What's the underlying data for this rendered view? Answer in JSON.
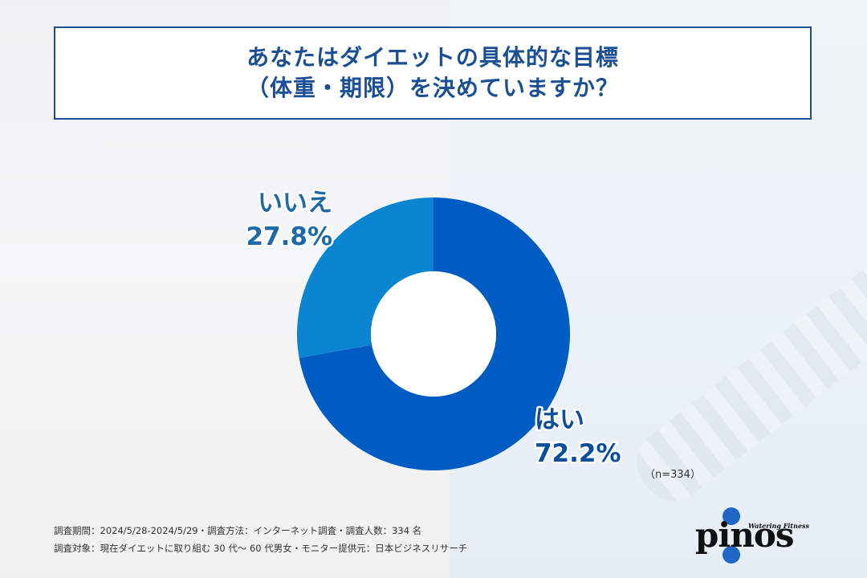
{
  "title": {
    "line1": "あなたはダイエットの具体的な目標",
    "line2": "（体重・期限）を決めていますか？"
  },
  "chart_data": {
    "type": "pie",
    "donut": true,
    "title": "あなたはダイエットの具体的な目標（体重・期限）を決めていますか？",
    "slices": [
      {
        "label": "はい",
        "value": 72.2,
        "value_label": "72.2%",
        "color": "#005bc3",
        "label_color": "#0a4f9c"
      },
      {
        "label": "いいえ",
        "value": 27.8,
        "value_label": "27.8%",
        "color": "#0a85d1",
        "label_color": "#1d6aa8"
      }
    ],
    "sample_note": "（n=334）"
  },
  "footnotes": {
    "line1": "調査期間：2024/5/28-2024/5/29・調査方法：インターネット調査・調査人数：334 名",
    "line2": "調査対象：現在ダイエットに取り組む 30 代～ 60 代男女・モニター提供元：日本ビジネスリサーチ"
  },
  "logo": {
    "word": "pinos",
    "tagline": "Watering Fitness",
    "color": "#1f67c7"
  }
}
